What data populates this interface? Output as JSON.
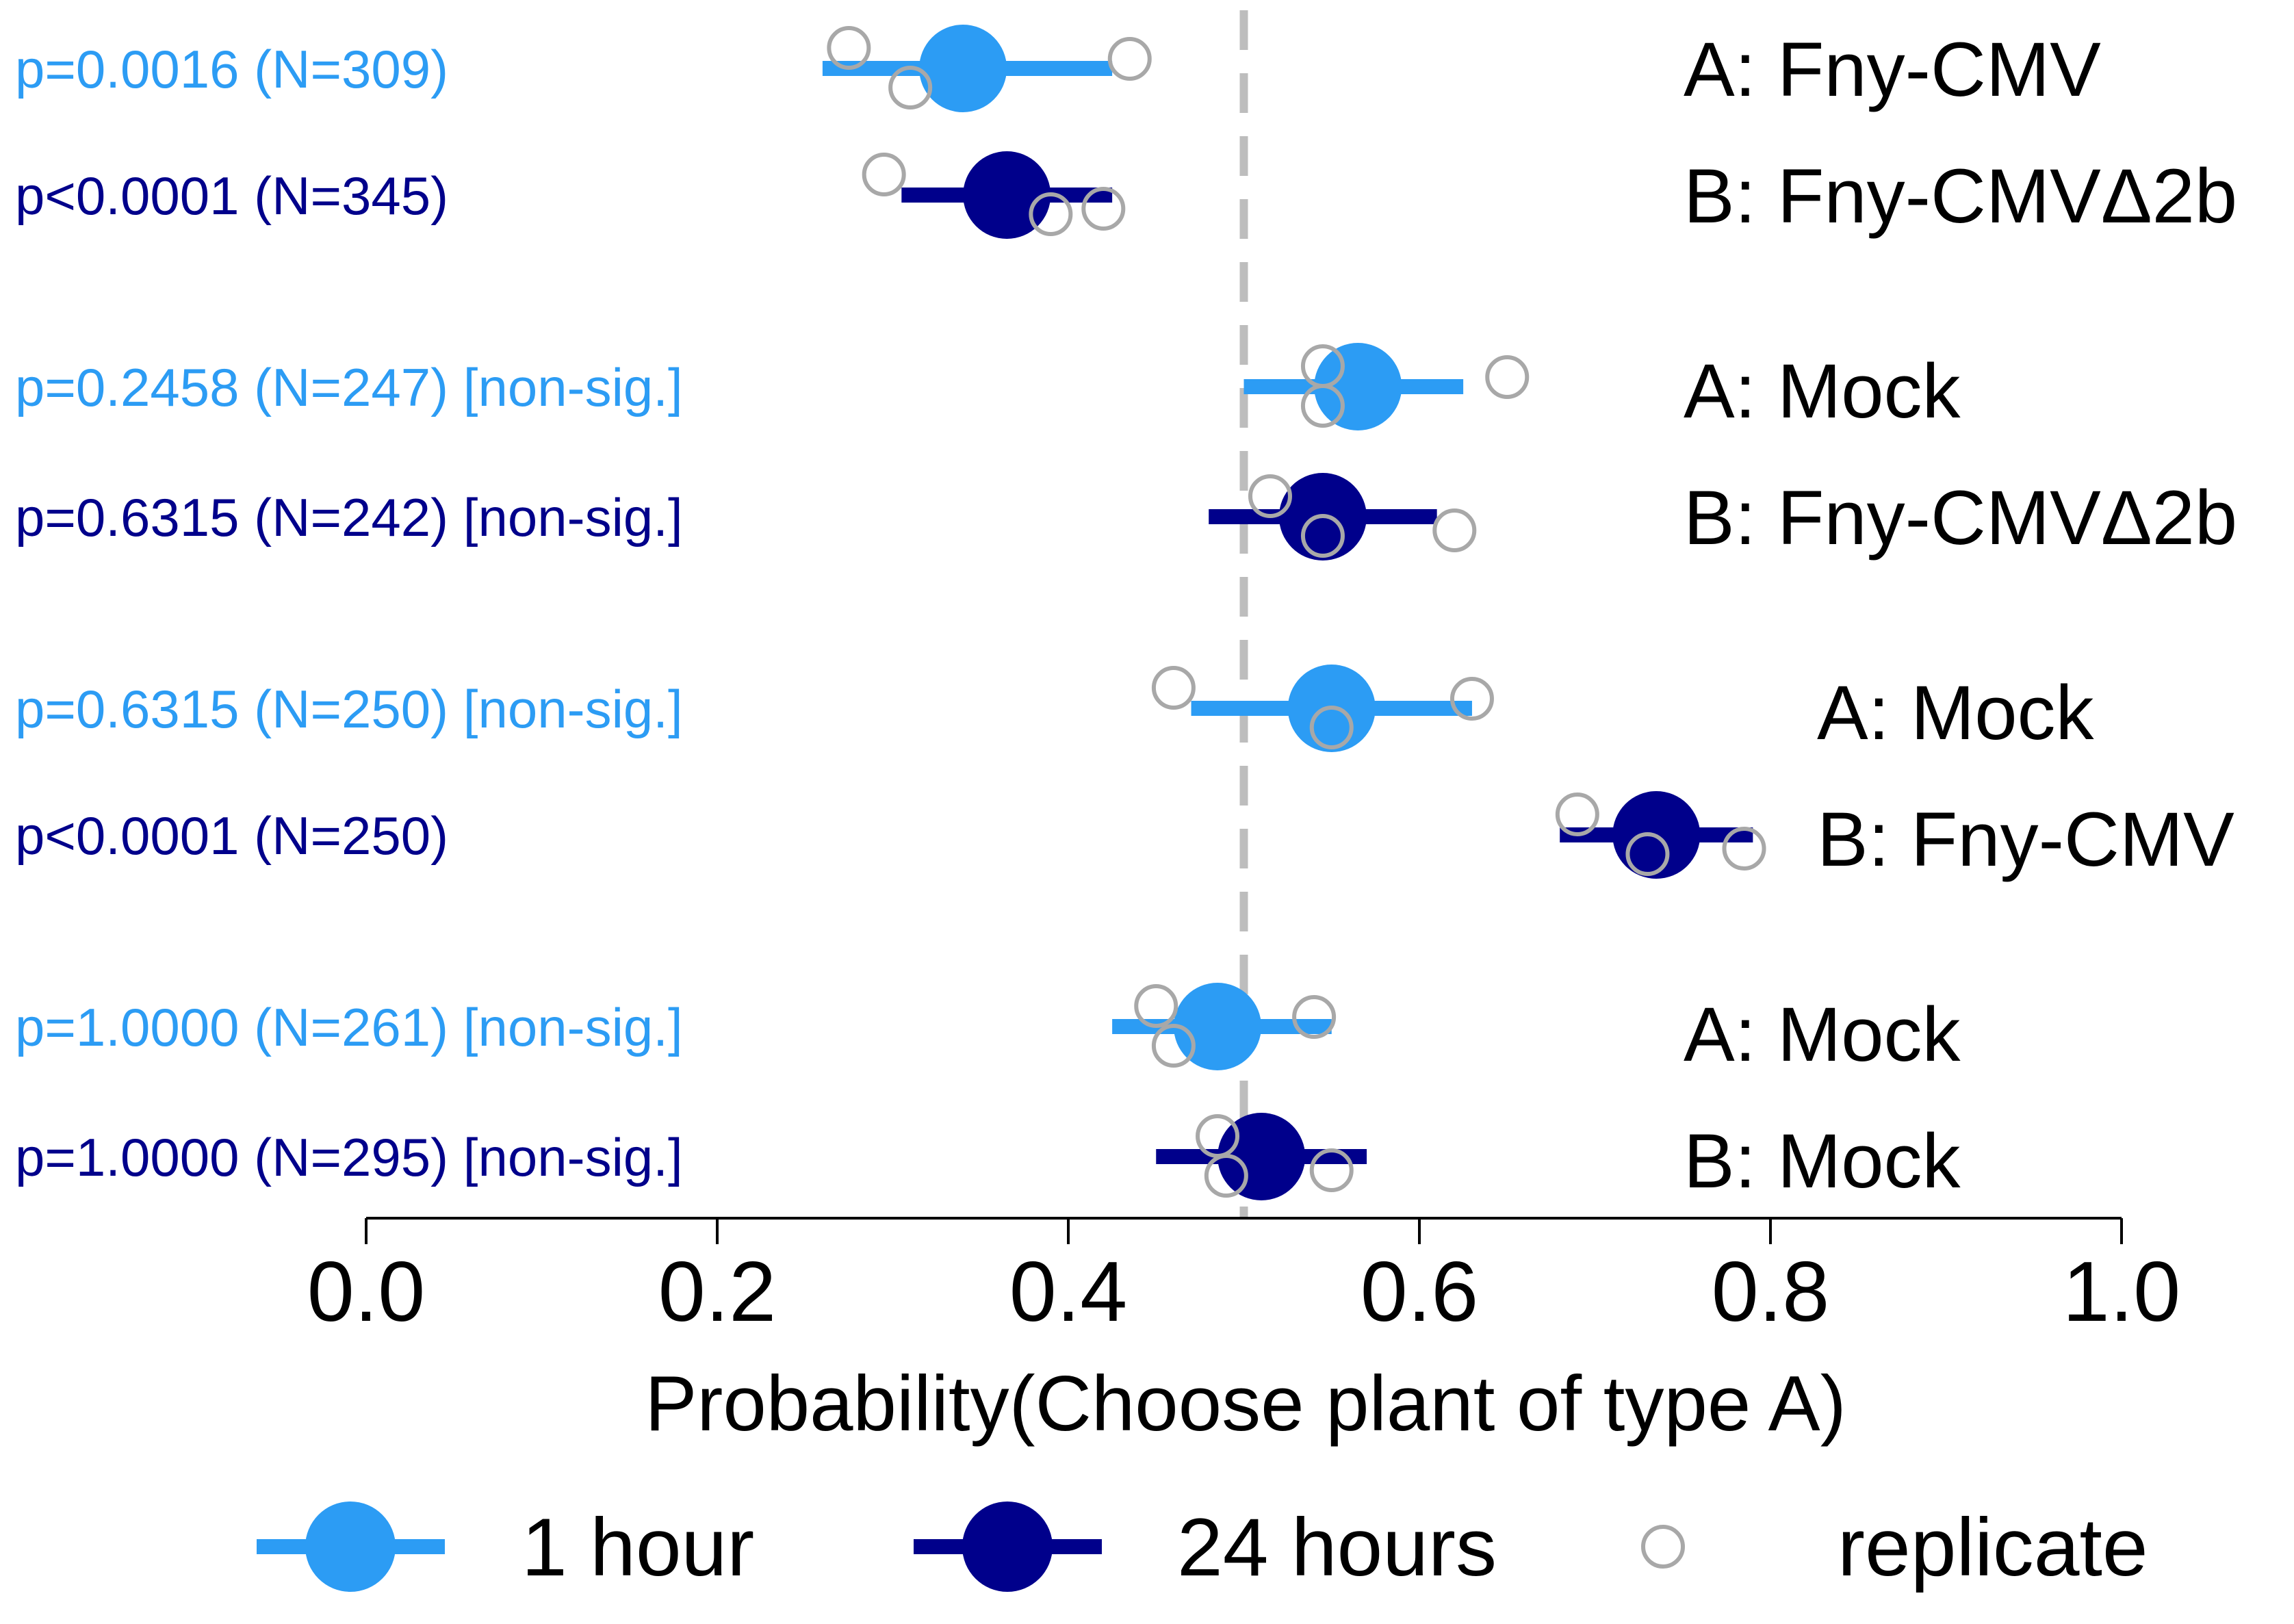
{
  "colors": {
    "one_hour": "#2C9CF4",
    "twenty_four_hours": "#00008B",
    "replicate": "#A8A8A8",
    "reference_line": "#BDBDBD",
    "axis": "#000000"
  },
  "chart_data": {
    "type": "dot-interval",
    "xlabel": "Probability(Choose plant of type A)",
    "xlim": [
      0.0,
      1.0
    ],
    "xticks": [
      "0.0",
      "0.2",
      "0.4",
      "0.6",
      "0.8",
      "1.0"
    ],
    "reference_line": 0.5,
    "legend": {
      "one_hour": "1 hour",
      "twenty_four_hours": "24 hours",
      "replicate": "replicate"
    },
    "comparisons": [
      {
        "label_a": "A: Fny-CMV",
        "label_b": "B: Fny-CMVΔ2b",
        "rows": [
          {
            "series": "1 hour",
            "ptext": "p=0.0016 (N=309)",
            "estimate": 0.34,
            "ci": [
              0.26,
              0.425
            ],
            "replicates": [
              0.275,
              0.31,
              0.435
            ]
          },
          {
            "series": "24 hours",
            "ptext": "p<0.0001 (N=345)",
            "estimate": 0.365,
            "ci": [
              0.305,
              0.425
            ],
            "replicates": [
              0.295,
              0.39,
              0.42
            ]
          }
        ]
      },
      {
        "label_a": "A: Mock",
        "label_b": "B: Fny-CMVΔ2b",
        "rows": [
          {
            "series": "1 hour",
            "ptext": "p=0.2458 (N=247) [non-sig.]",
            "estimate": 0.565,
            "ci": [
              0.5,
              0.625
            ],
            "replicates": [
              0.545,
              0.545,
              0.65
            ]
          },
          {
            "series": "24 hours",
            "ptext": "p=0.6315 (N=242) [non-sig.]",
            "estimate": 0.545,
            "ci": [
              0.48,
              0.61
            ],
            "replicates": [
              0.515,
              0.545,
              0.62
            ]
          }
        ]
      },
      {
        "label_a": "A: Mock",
        "label_b": "B: Fny-CMV",
        "rows": [
          {
            "series": "1 hour",
            "ptext": "p=0.6315 (N=250) [non-sig.]",
            "estimate": 0.55,
            "ci": [
              0.47,
              0.63
            ],
            "replicates": [
              0.46,
              0.55,
              0.63
            ]
          },
          {
            "series": "24 hours",
            "ptext": "p<0.0001 (N=250)",
            "estimate": 0.735,
            "ci": [
              0.68,
              0.79
            ],
            "replicates": [
              0.69,
              0.73,
              0.785
            ]
          }
        ]
      },
      {
        "label_a": "A: Mock",
        "label_b": "B: Mock",
        "rows": [
          {
            "series": "1 hour",
            "ptext": "p=1.0000 (N=261) [non-sig.]",
            "estimate": 0.485,
            "ci": [
              0.425,
              0.55
            ],
            "replicates": [
              0.45,
              0.46,
              0.54
            ]
          },
          {
            "series": "24 hours",
            "ptext": "p=1.0000 (N=295) [non-sig.]",
            "estimate": 0.51,
            "ci": [
              0.45,
              0.57
            ],
            "replicates": [
              0.485,
              0.49,
              0.55
            ]
          }
        ]
      }
    ]
  }
}
